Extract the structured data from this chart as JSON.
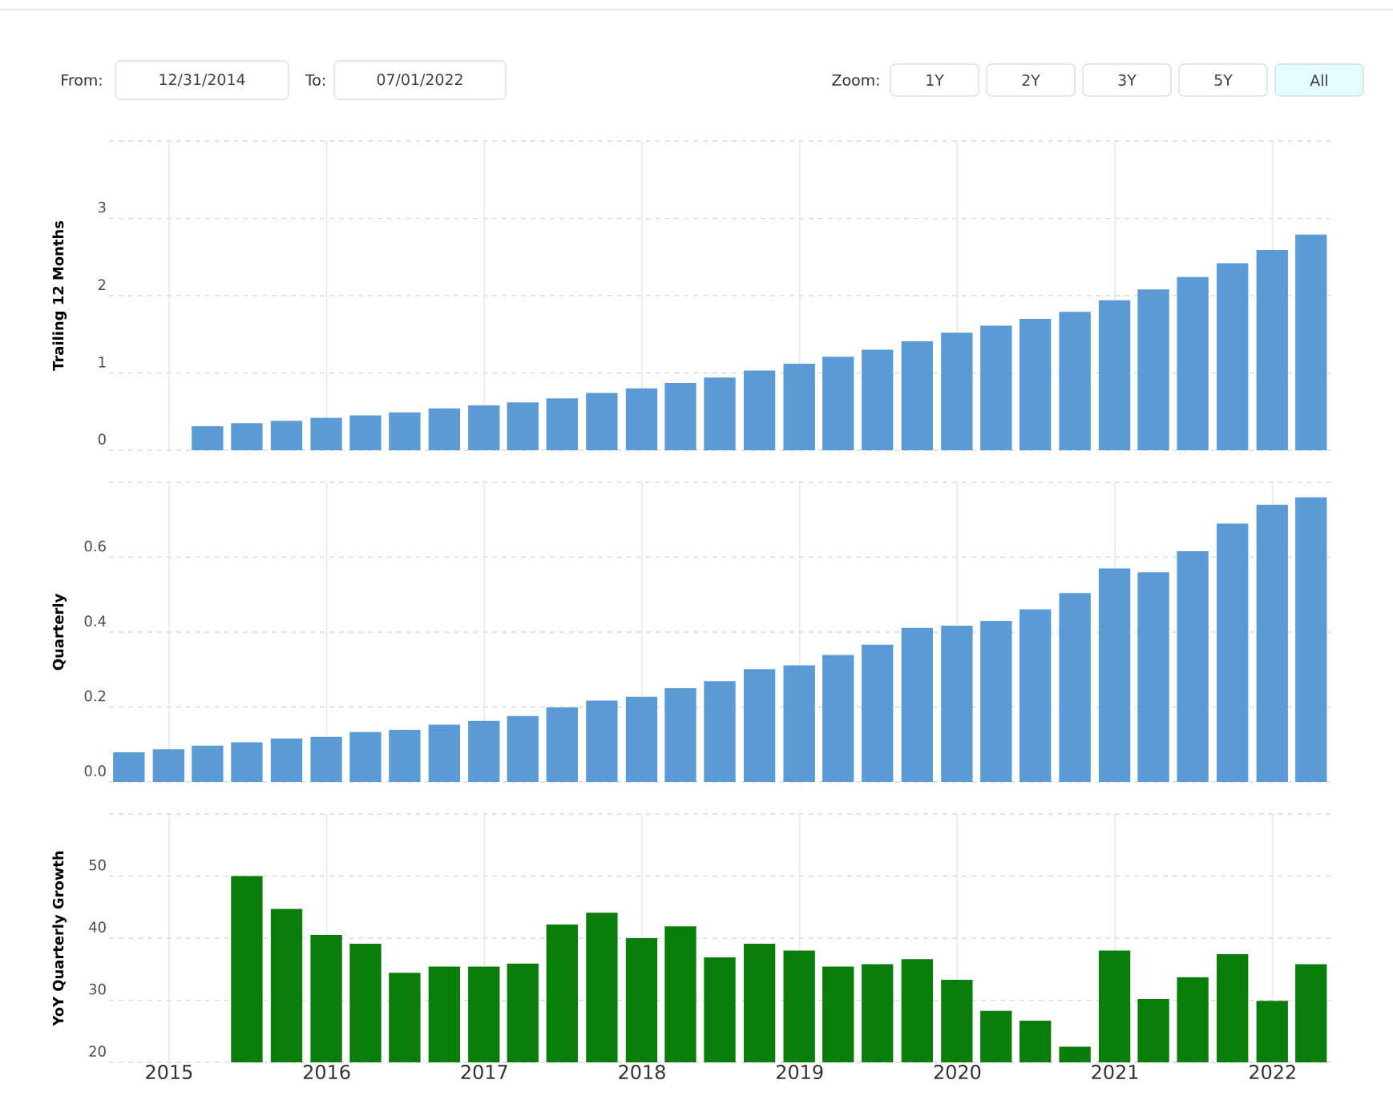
{
  "chart_data": [
    {
      "type": "bar",
      "ylabel": "Trailing 12 Months",
      "color": "#5b9bd5",
      "annotations": [
        "From:",
        "12/31/2014",
        "To:",
        "07/01/2022",
        "Zoom:",
        "1Y",
        "2Y",
        "3Y",
        "5Y",
        "All"
      ],
      "x": [
        "2015-03-31",
        "2015-06-30",
        "2015-09-30",
        "2015-12-31",
        "2016-03-31",
        "2016-06-30",
        "2016-09-30",
        "2016-12-31",
        "2017-03-31",
        "2017-06-30",
        "2017-09-30",
        "2017-12-31",
        "2018-03-31",
        "2018-06-30",
        "2018-09-30",
        "2018-12-31",
        "2019-03-31",
        "2019-06-30",
        "2019-09-30",
        "2019-12-31",
        "2020-03-31",
        "2020-06-30",
        "2020-09-30",
        "2020-12-31",
        "2021-03-31",
        "2021-06-30",
        "2021-09-30",
        "2021-12-31",
        "2022-03-31"
      ],
      "values": [
        0.31,
        0.35,
        0.38,
        0.42,
        0.45,
        0.49,
        0.54,
        0.58,
        0.62,
        0.67,
        0.74,
        0.8,
        0.87,
        0.94,
        1.03,
        1.12,
        1.21,
        1.3,
        1.41,
        1.52,
        1.61,
        1.7,
        1.79,
        1.94,
        2.08,
        2.24,
        2.42,
        2.59,
        2.79
      ],
      "xlim": [
        "2014-08-15",
        "2022-05-15"
      ],
      "xticks": [
        {
          "value": "2015",
          "label": null
        },
        {
          "value": "2016",
          "label": null
        },
        {
          "value": "2017",
          "label": null
        },
        {
          "value": "2018",
          "label": null
        },
        {
          "value": "2019",
          "label": null
        },
        {
          "value": "2020",
          "label": null
        },
        {
          "value": "2021",
          "label": null
        },
        {
          "value": "2022",
          "label": null
        }
      ],
      "ylim": [
        0,
        4
      ],
      "yticks": [
        0,
        1,
        2,
        3,
        {
          "value": 4,
          "label": null
        }
      ],
      "grid": true,
      "tick_labels": "y"
    },
    {
      "type": "bar",
      "ylabel": "Quarterly",
      "color": "#5b9bd5",
      "x": [
        "2014-09-30",
        "2014-12-31",
        "2015-03-31",
        "2015-06-30",
        "2015-09-30",
        "2015-12-31",
        "2016-03-31",
        "2016-06-30",
        "2016-09-30",
        "2016-12-31",
        "2017-03-31",
        "2017-06-30",
        "2017-09-30",
        "2017-12-31",
        "2018-03-31",
        "2018-06-30",
        "2018-09-30",
        "2018-12-31",
        "2019-03-31",
        "2019-06-30",
        "2019-09-30",
        "2019-12-31",
        "2020-03-31",
        "2020-06-30",
        "2020-09-30",
        "2020-12-31",
        "2021-03-31",
        "2021-06-30",
        "2021-09-30",
        "2021-12-31",
        "2022-03-31"
      ],
      "values": [
        0.079,
        0.087,
        0.097,
        0.106,
        0.116,
        0.12,
        0.133,
        0.139,
        0.153,
        0.163,
        0.176,
        0.199,
        0.217,
        0.227,
        0.25,
        0.269,
        0.301,
        0.311,
        0.339,
        0.366,
        0.411,
        0.417,
        0.43,
        0.461,
        0.504,
        0.57,
        0.56,
        0.616,
        0.69,
        0.74,
        0.76
      ],
      "xlim": [
        "2014-08-15",
        "2022-05-15"
      ],
      "xticks": [
        {
          "value": "2015",
          "label": null
        },
        {
          "value": "2016",
          "label": null
        },
        {
          "value": "2017",
          "label": null
        },
        {
          "value": "2018",
          "label": null
        },
        {
          "value": "2019",
          "label": null
        },
        {
          "value": "2020",
          "label": null
        },
        {
          "value": "2021",
          "label": null
        },
        {
          "value": "2022",
          "label": null
        }
      ],
      "ylim": [
        0,
        0.8
      ],
      "yticks": [
        {
          "value": 0,
          "label": "0.0"
        },
        0.2,
        0.4,
        0.6,
        {
          "value": 0.8,
          "label": null
        }
      ],
      "grid": true,
      "tick_labels": "y"
    },
    {
      "type": "bar",
      "ylabel": "YoY Quarterly Growth",
      "color": "#0a7d0a",
      "x": [
        "2015-06-30",
        "2015-09-30",
        "2015-12-31",
        "2016-03-31",
        "2016-06-30",
        "2016-09-30",
        "2016-12-31",
        "2017-03-31",
        "2017-06-30",
        "2017-09-30",
        "2017-12-31",
        "2018-03-31",
        "2018-06-30",
        "2018-09-30",
        "2018-12-31",
        "2019-03-31",
        "2019-06-30",
        "2019-09-30",
        "2019-12-31",
        "2020-03-31",
        "2020-06-30",
        "2020-09-30",
        "2020-12-31",
        "2021-03-31",
        "2021-06-30",
        "2021-09-30",
        "2021-12-31",
        "2022-03-31"
      ],
      "values": [
        50.0,
        44.7,
        40.5,
        39.1,
        34.4,
        35.4,
        35.4,
        35.9,
        42.2,
        44.1,
        40.0,
        41.9,
        36.9,
        39.1,
        38.0,
        35.4,
        35.8,
        36.6,
        33.3,
        28.3,
        26.7,
        22.5,
        38.0,
        30.2,
        33.7,
        37.4,
        29.9,
        35.8
      ],
      "xlim": [
        "2014-08-15",
        "2022-05-15"
      ],
      "xticks": [
        {
          "value": "2015",
          "label": "2015"
        },
        {
          "value": "2016",
          "label": "2016"
        },
        {
          "value": "2017",
          "label": "2017"
        },
        {
          "value": "2018",
          "label": "2018"
        },
        {
          "value": "2019",
          "label": "2019"
        },
        {
          "value": "2020",
          "label": "2020"
        },
        {
          "value": "2021",
          "label": "2021"
        },
        {
          "value": "2022",
          "label": "2022"
        }
      ],
      "ylim": [
        20,
        60
      ],
      "yticks": [
        20,
        30,
        40,
        50,
        {
          "value": 60,
          "label": null
        }
      ],
      "grid": true
    }
  ]
}
